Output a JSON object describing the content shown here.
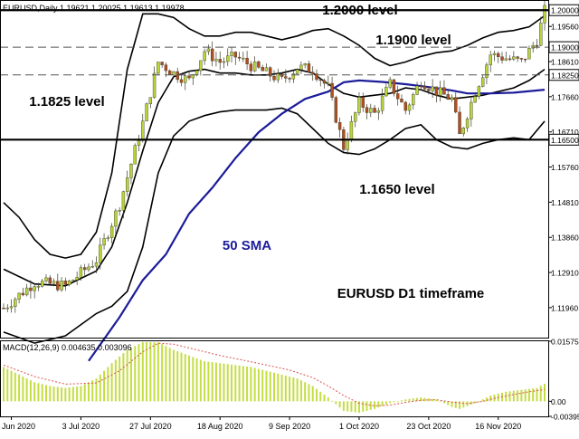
{
  "chart_data": {
    "type": "candlestick",
    "symbol_header": "EURUSD,Daily  1.19621 1.20025 1.19613 1.19978",
    "price_axis": {
      "ylim": [
        1.1115,
        1.2025
      ],
      "tick_labels": [
        "1.20000",
        "1.19560",
        "1.19000",
        "1.18610",
        "1.18250",
        "1.17660",
        "1.16710",
        "1.16500",
        "1.15760",
        "1.14810",
        "1.13860",
        "1.12910",
        "1.11960"
      ],
      "tick_values": [
        1.2,
        1.1956,
        1.19,
        1.1861,
        1.1825,
        1.1766,
        1.1671,
        1.165,
        1.1576,
        1.1481,
        1.1386,
        1.1291,
        1.1196
      ]
    },
    "levels": [
      {
        "value": 1.2,
        "label": "1.2000 level",
        "style": "solid"
      },
      {
        "value": 1.19,
        "label": "1.1900 level",
        "style": "dashed"
      },
      {
        "value": 1.1825,
        "label": "1.1825 level",
        "style": "dashed"
      },
      {
        "value": 1.165,
        "label": "1.1650 level",
        "style": "solid"
      }
    ],
    "annotations": {
      "sma": "50 SMA",
      "timeframe": "EURUSD D1 timeframe"
    },
    "x_axis": {
      "tick_labels": [
        "Jun 2020",
        "3 Jul 2020",
        "27 Jul 2020",
        "18 Aug 2020",
        "9 Sep 2020",
        "1 Oct 2020",
        "23 Oct 2020",
        "16 Nov 2020"
      ],
      "tick_index": [
        2,
        20,
        38,
        56,
        74,
        92,
        110,
        128
      ]
    },
    "series": [
      {
        "role": "close",
        "points": [
          [
            0,
            1.1195
          ],
          [
            8,
            1.1265
          ],
          [
            16,
            1.1255
          ],
          [
            24,
            1.1325
          ],
          [
            30,
            1.1475
          ],
          [
            36,
            1.1695
          ],
          [
            40,
            1.186
          ],
          [
            44,
            1.183
          ],
          [
            48,
            1.181
          ],
          [
            52,
            1.189
          ],
          [
            56,
            1.186
          ],
          [
            60,
            1.1875
          ],
          [
            64,
            1.185
          ],
          [
            68,
            1.183
          ],
          [
            72,
            1.181
          ],
          [
            76,
            1.1845
          ],
          [
            80,
            1.184
          ],
          [
            84,
            1.179
          ],
          [
            88,
            1.163
          ],
          [
            92,
            1.175
          ],
          [
            96,
            1.172
          ],
          [
            100,
            1.18
          ],
          [
            104,
            1.173
          ],
          [
            108,
            1.181
          ],
          [
            112,
            1.178
          ],
          [
            116,
            1.176
          ],
          [
            118,
            1.166
          ],
          [
            122,
            1.178
          ],
          [
            126,
            1.188
          ],
          [
            130,
            1.187
          ],
          [
            134,
            1.186
          ],
          [
            138,
            1.192
          ],
          [
            140,
            1.1998
          ]
        ]
      },
      {
        "role": "sma50",
        "name": "50 SMA",
        "points": [
          [
            22,
            1.1052
          ],
          [
            30,
            1.117
          ],
          [
            36,
            1.127
          ],
          [
            42,
            1.134
          ],
          [
            48,
            1.145
          ],
          [
            54,
            1.152
          ],
          [
            60,
            1.16
          ],
          [
            66,
            1.167
          ],
          [
            72,
            1.172
          ],
          [
            78,
            1.176
          ],
          [
            84,
            1.178
          ],
          [
            88,
            1.1805
          ],
          [
            92,
            1.181
          ],
          [
            98,
            1.1806
          ],
          [
            104,
            1.18
          ],
          [
            110,
            1.1792
          ],
          [
            116,
            1.1783
          ],
          [
            120,
            1.1775
          ],
          [
            126,
            1.1775
          ],
          [
            132,
            1.1777
          ],
          [
            140,
            1.1785
          ]
        ]
      },
      {
        "role": "bollinger-upper",
        "points": [
          [
            0,
            1.148
          ],
          [
            4,
            1.144
          ],
          [
            8,
            1.138
          ],
          [
            12,
            1.134
          ],
          [
            16,
            1.133
          ],
          [
            20,
            1.134
          ],
          [
            24,
            1.14
          ],
          [
            28,
            1.156
          ],
          [
            32,
            1.184
          ],
          [
            36,
            1.199
          ],
          [
            40,
            1.199
          ],
          [
            44,
            1.198
          ],
          [
            48,
            1.195
          ],
          [
            52,
            1.193
          ],
          [
            56,
            1.193
          ],
          [
            60,
            1.194
          ],
          [
            64,
            1.194
          ],
          [
            68,
            1.193
          ],
          [
            72,
            1.192
          ],
          [
            76,
            1.193
          ],
          [
            80,
            1.1945
          ],
          [
            84,
            1.195
          ],
          [
            88,
            1.193
          ],
          [
            92,
            1.1905
          ],
          [
            96,
            1.187
          ],
          [
            100,
            1.185
          ],
          [
            104,
            1.186
          ],
          [
            108,
            1.1875
          ],
          [
            112,
            1.1885
          ],
          [
            116,
            1.189
          ],
          [
            120,
            1.1905
          ],
          [
            124,
            1.1925
          ],
          [
            128,
            1.194
          ],
          [
            132,
            1.1945
          ],
          [
            136,
            1.1955
          ],
          [
            140,
            1.1985
          ]
        ]
      },
      {
        "role": "bollinger-middle",
        "points": [
          [
            0,
            1.13
          ],
          [
            8,
            1.126
          ],
          [
            16,
            1.1255
          ],
          [
            24,
            1.1295
          ],
          [
            28,
            1.136
          ],
          [
            32,
            1.148
          ],
          [
            36,
            1.162
          ],
          [
            40,
            1.175
          ],
          [
            44,
            1.182
          ],
          [
            48,
            1.1835
          ],
          [
            52,
            1.184
          ],
          [
            56,
            1.183
          ],
          [
            60,
            1.183
          ],
          [
            64,
            1.1825
          ],
          [
            68,
            1.1825
          ],
          [
            72,
            1.183
          ],
          [
            76,
            1.184
          ],
          [
            80,
            1.183
          ],
          [
            84,
            1.18
          ],
          [
            88,
            1.1775
          ],
          [
            92,
            1.1765
          ],
          [
            96,
            1.177
          ],
          [
            100,
            1.1775
          ],
          [
            104,
            1.179
          ],
          [
            108,
            1.1785
          ],
          [
            112,
            1.177
          ],
          [
            116,
            1.176
          ],
          [
            120,
            1.1765
          ],
          [
            124,
            1.177
          ],
          [
            128,
            1.178
          ],
          [
            132,
            1.179
          ],
          [
            136,
            1.181
          ],
          [
            140,
            1.184
          ]
        ]
      },
      {
        "role": "bollinger-lower",
        "points": [
          [
            0,
            1.113
          ],
          [
            8,
            1.11
          ],
          [
            16,
            1.112
          ],
          [
            24,
            1.118
          ],
          [
            28,
            1.12
          ],
          [
            32,
            1.124
          ],
          [
            36,
            1.136
          ],
          [
            40,
            1.156
          ],
          [
            44,
            1.166
          ],
          [
            48,
            1.17
          ],
          [
            52,
            1.1715
          ],
          [
            56,
            1.1725
          ],
          [
            60,
            1.173
          ],
          [
            64,
            1.173
          ],
          [
            68,
            1.173
          ],
          [
            72,
            1.1735
          ],
          [
            76,
            1.172
          ],
          [
            80,
            1.168
          ],
          [
            84,
            1.164
          ],
          [
            88,
            1.1615
          ],
          [
            92,
            1.161
          ],
          [
            96,
            1.1625
          ],
          [
            100,
            1.165
          ],
          [
            104,
            1.168
          ],
          [
            108,
            1.169
          ],
          [
            112,
            1.165
          ],
          [
            116,
            1.163
          ],
          [
            120,
            1.1625
          ],
          [
            124,
            1.164
          ],
          [
            128,
            1.165
          ],
          [
            132,
            1.1655
          ],
          [
            136,
            1.165
          ],
          [
            140,
            1.17
          ]
        ]
      }
    ],
    "macd": {
      "header": "MACD(12,26,9) 0.004635 0.003096",
      "tick_labels": [
        "0.01575",
        "0.00",
        "-0.00395"
      ],
      "tick_values": [
        0.01575,
        0.0,
        -0.00395
      ],
      "ylim": [
        -0.00395,
        0.01575
      ],
      "histogram_points": [
        [
          0,
          0.009
        ],
        [
          4,
          0.007
        ],
        [
          8,
          0.005
        ],
        [
          12,
          0.004
        ],
        [
          16,
          0.0035
        ],
        [
          20,
          0.004
        ],
        [
          24,
          0.006
        ],
        [
          28,
          0.01
        ],
        [
          32,
          0.0135
        ],
        [
          36,
          0.0155
        ],
        [
          40,
          0.0155
        ],
        [
          44,
          0.0135
        ],
        [
          48,
          0.012
        ],
        [
          52,
          0.0105
        ],
        [
          56,
          0.01
        ],
        [
          60,
          0.0095
        ],
        [
          64,
          0.009
        ],
        [
          68,
          0.008
        ],
        [
          72,
          0.007
        ],
        [
          76,
          0.006
        ],
        [
          80,
          0.004
        ],
        [
          84,
          0.001
        ],
        [
          88,
          -0.0025
        ],
        [
          92,
          -0.003
        ],
        [
          96,
          -0.002
        ],
        [
          100,
          -0.0005
        ],
        [
          104,
          0.0005
        ],
        [
          108,
          0.001
        ],
        [
          112,
          0.0005
        ],
        [
          116,
          -0.0015
        ],
        [
          118,
          -0.002
        ],
        [
          122,
          -0.0005
        ],
        [
          126,
          0.0015
        ],
        [
          130,
          0.0025
        ],
        [
          134,
          0.003
        ],
        [
          138,
          0.0035
        ],
        [
          140,
          0.0046
        ]
      ],
      "signal_points": [
        [
          0,
          0.0095
        ],
        [
          8,
          0.0065
        ],
        [
          16,
          0.0045
        ],
        [
          24,
          0.0048
        ],
        [
          30,
          0.008
        ],
        [
          36,
          0.013
        ],
        [
          40,
          0.0152
        ],
        [
          44,
          0.015
        ],
        [
          50,
          0.0135
        ],
        [
          56,
          0.012
        ],
        [
          62,
          0.0108
        ],
        [
          68,
          0.0095
        ],
        [
          74,
          0.0082
        ],
        [
          80,
          0.0062
        ],
        [
          84,
          0.004
        ],
        [
          88,
          0.0015
        ],
        [
          92,
          -0.0005
        ],
        [
          96,
          -0.0012
        ],
        [
          100,
          -0.001
        ],
        [
          104,
          -0.0003
        ],
        [
          108,
          0.0003
        ],
        [
          112,
          0.0004
        ],
        [
          116,
          -0.0002
        ],
        [
          120,
          -0.0006
        ],
        [
          124,
          0.0
        ],
        [
          128,
          0.001
        ],
        [
          132,
          0.0018
        ],
        [
          136,
          0.0025
        ],
        [
          140,
          0.0031
        ]
      ]
    },
    "colors": {
      "bull": "#b8d53a",
      "bear": "#b14f1f",
      "sma": "#1c1c9a",
      "bands": "#000000",
      "macd_hist": "#c5dd44",
      "macd_signal": "#d9534f",
      "sma_label": "#1c1c9a"
    }
  }
}
